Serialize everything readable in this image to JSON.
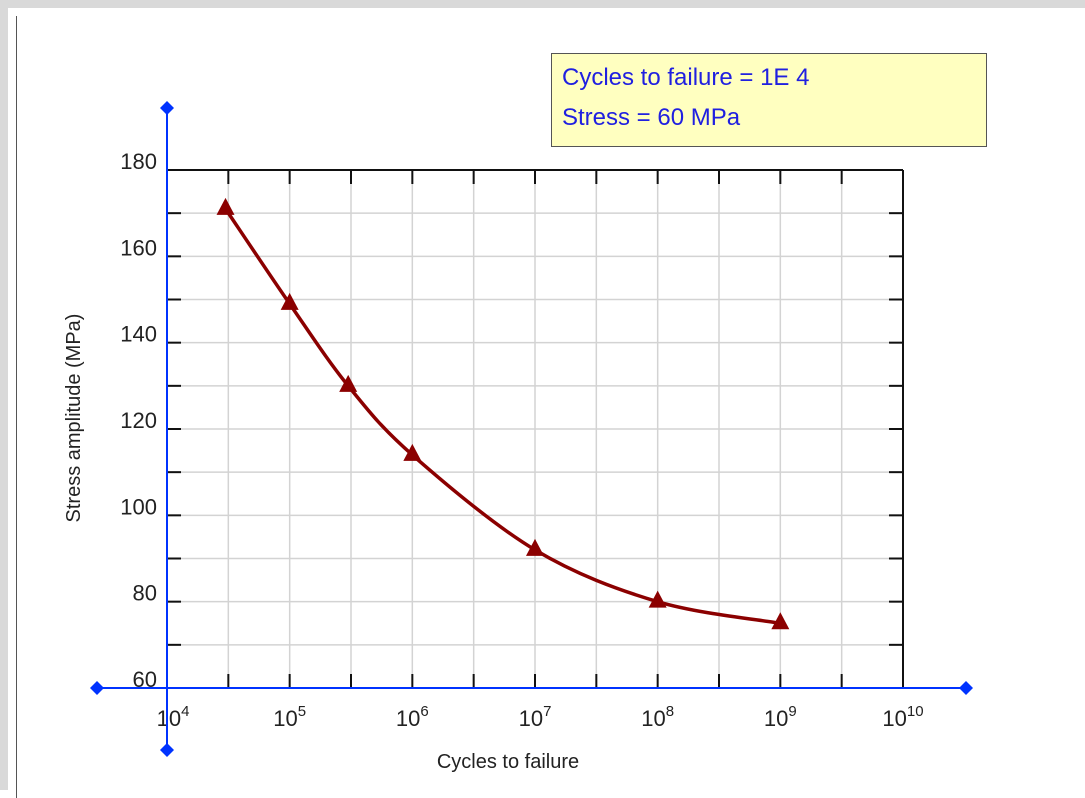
{
  "readout": {
    "cycles_line": "Cycles to failure = 1E 4",
    "stress_line": "Stress = 60 MPa"
  },
  "colors": {
    "curve": "#8b0000",
    "axis_handles": "#0033ff",
    "grid": "#d3d3d3",
    "readout_bg": "#ffffc0",
    "readout_text": "#2020e0"
  },
  "chart_data": {
    "type": "line",
    "title": "",
    "xlabel": "Cycles to failure",
    "ylabel": "Stress amplitude (MPa)",
    "x_scale": "log",
    "xlim": [
      10000,
      10000000000
    ],
    "ylim": [
      60,
      180
    ],
    "grid": true,
    "y_ticks": [
      60,
      80,
      100,
      120,
      140,
      160,
      180
    ],
    "x_tick_labels": [
      {
        "base": "10",
        "exp": "4",
        "value": 10000
      },
      {
        "base": "10",
        "exp": "5",
        "value": 100000
      },
      {
        "base": "10",
        "exp": "6",
        "value": 1000000
      },
      {
        "base": "10",
        "exp": "7",
        "value": 10000000
      },
      {
        "base": "10",
        "exp": "8",
        "value": 100000000
      },
      {
        "base": "10",
        "exp": "9",
        "value": 1000000000
      },
      {
        "base": "10",
        "exp": "10",
        "value": 10000000000
      }
    ],
    "series": [
      {
        "marker": "triangle",
        "color": "#8b0000",
        "x": [
          30000,
          100000,
          300000,
          1000000,
          10000000,
          100000000,
          1000000000
        ],
        "y": [
          171,
          149,
          130,
          114,
          92,
          80,
          75
        ]
      }
    ]
  }
}
